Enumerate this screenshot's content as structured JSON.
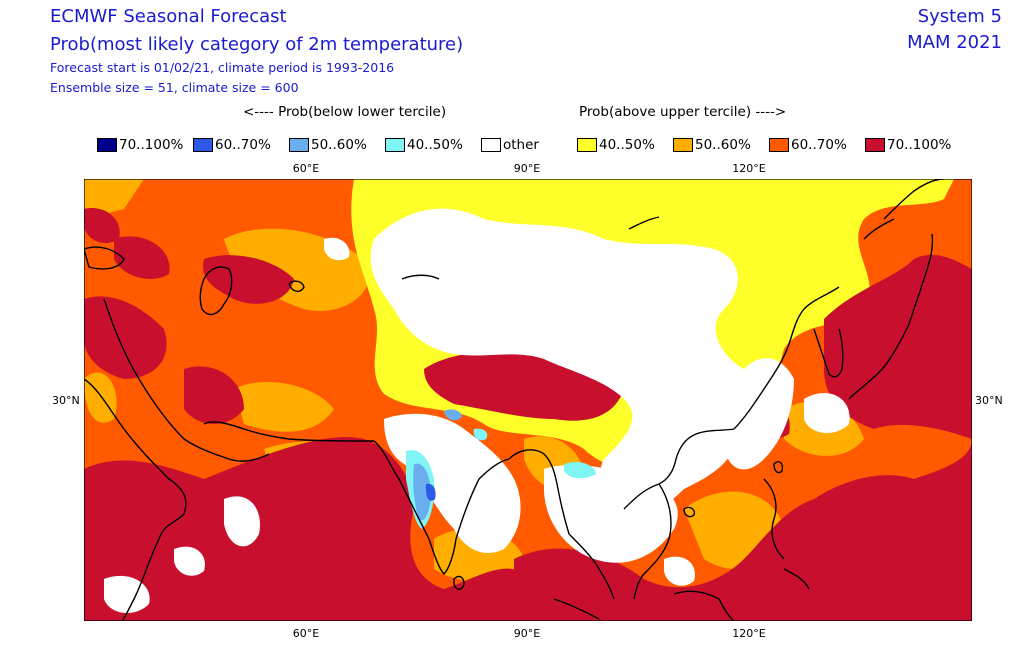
{
  "header": {
    "title": "ECMWF Seasonal Forecast",
    "subtitle": "Prob(most likely category of 2m temperature)",
    "forecast_info": "Forecast start is 01/02/21, climate period is 1993-2016",
    "ensemble_info": "Ensemble size = 51, climate size = 600",
    "system": "System 5",
    "season": "MAM 2021"
  },
  "legend": {
    "below_header": "<---- Prob(below lower tercile)",
    "above_header": "Prob(above upper tercile) ---->",
    "items": [
      {
        "label": "70..100%",
        "color": "#00008b"
      },
      {
        "label": "60..70%",
        "color": "#2c5ae6"
      },
      {
        "label": "50..60%",
        "color": "#6aaef0"
      },
      {
        "label": "40..50%",
        "color": "#7ff5f5"
      },
      {
        "label": "other",
        "color": "#ffffff"
      },
      {
        "label": "40..50%",
        "color": "#ffff2a"
      },
      {
        "label": "50..60%",
        "color": "#ffae00"
      },
      {
        "label": "60..70%",
        "color": "#ff5a00"
      },
      {
        "label": "70..100%",
        "color": "#c8102e"
      }
    ]
  },
  "axes": {
    "lon_labels": [
      "60°E",
      "90°E",
      "120°E"
    ],
    "lat_labels": [
      "30°N"
    ]
  },
  "colors": {
    "title": "#1a1ad0",
    "coast": "#000000"
  }
}
